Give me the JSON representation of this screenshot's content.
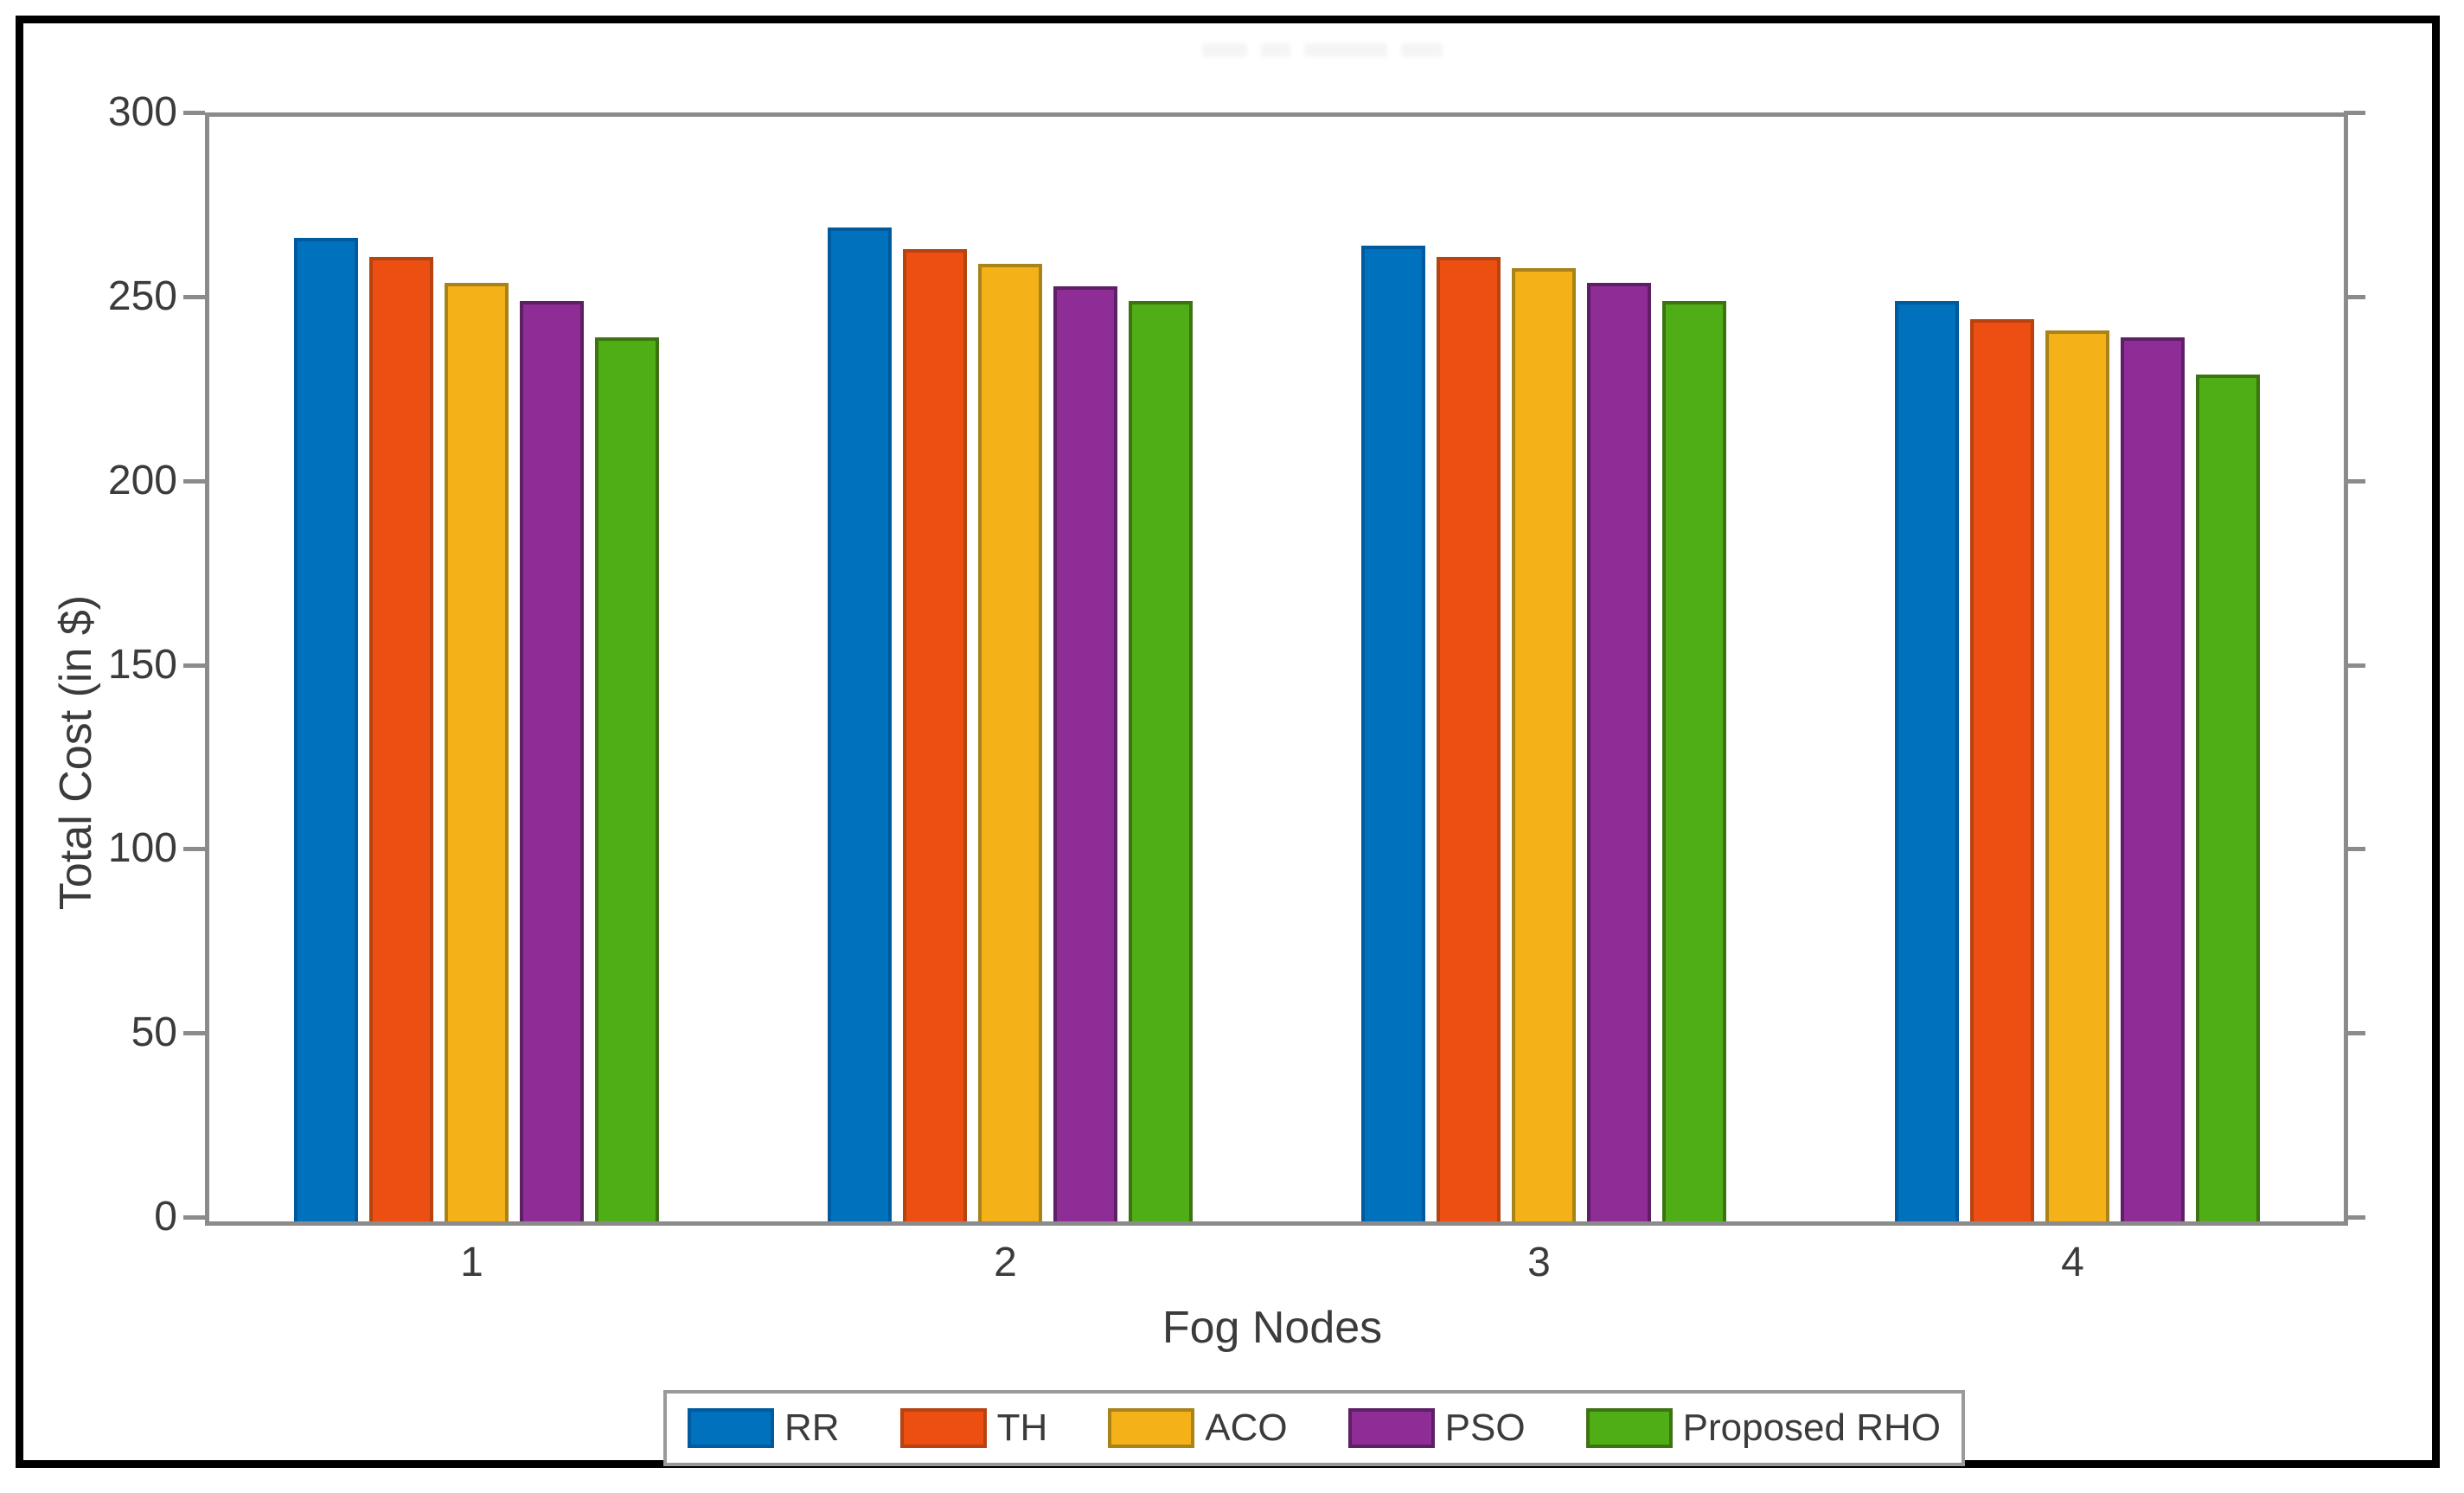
{
  "figure": {
    "frame_color": "#000000",
    "axes_color": "#8b8b8b",
    "text_color": "#3b3b3b",
    "background": "#ffffff"
  },
  "chart_data": {
    "type": "bar",
    "title": "",
    "xlabel": "Fog Nodes",
    "ylabel": "Total Cost (in $)",
    "categories": [
      "1",
      "2",
      "3",
      "4"
    ],
    "series": [
      {
        "name": "RR",
        "color": "#0072bd",
        "edge": "#005a9e",
        "values": [
          267,
          270,
          265,
          250
        ]
      },
      {
        "name": "TH",
        "color": "#ec4f11",
        "edge": "#b64310",
        "values": [
          262,
          264,
          262,
          245
        ]
      },
      {
        "name": "ACO",
        "color": "#f4b118",
        "edge": "#a9821a",
        "values": [
          255,
          260,
          259,
          242
        ]
      },
      {
        "name": "PSO",
        "color": "#8e2d96",
        "edge": "#5e1f66",
        "values": [
          250,
          254,
          255,
          240
        ]
      },
      {
        "name": "Proposed RHO",
        "color": "#4fae15",
        "edge": "#3d7311",
        "values": [
          240,
          250,
          250,
          230
        ]
      }
    ],
    "ylim": [
      0,
      300
    ],
    "yticks": [
      0,
      50,
      100,
      150,
      200,
      250,
      300
    ],
    "grid": false,
    "legend_position": "below-axes"
  }
}
